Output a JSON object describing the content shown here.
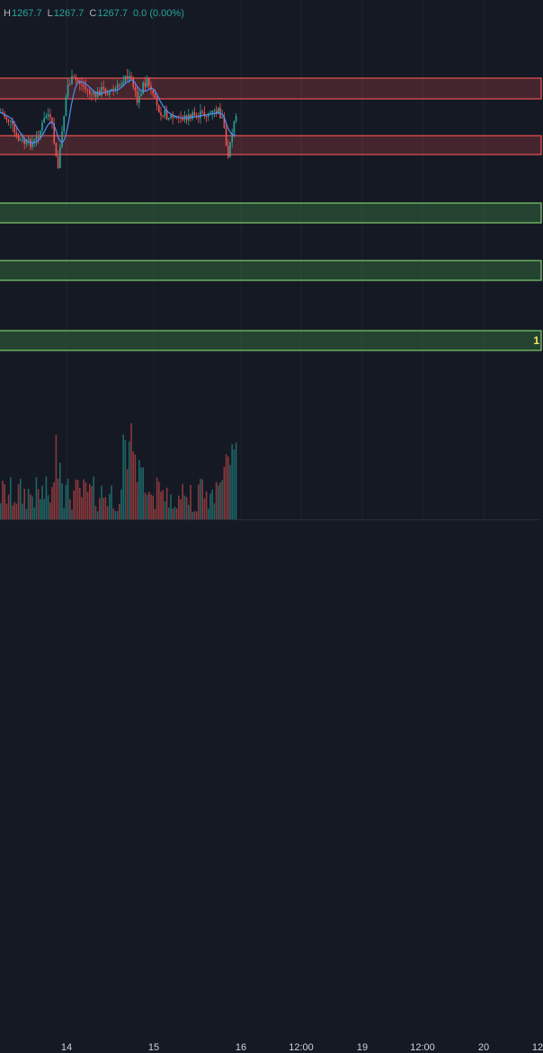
{
  "legend": {
    "h_label": "H",
    "h_value": "1267.7",
    "l_label": "L",
    "l_value": "1267.7",
    "c_label": "C",
    "c_value": "1267.7",
    "change": "0.0 (0.00%)"
  },
  "yellow_tag": "1",
  "x_axis": [
    "14",
    "15",
    "16",
    "12:00",
    "19",
    "12:00",
    "20",
    "12"
  ],
  "colors": {
    "background": "#151924",
    "up": "#26a69a",
    "down": "#ef5350",
    "resistance_zone": "#ef5350",
    "support_zone": "#7fcf6a",
    "moving_average": "#4e8ef7",
    "label_highlight": "#f5e663"
  },
  "zones": [
    {
      "kind": "resistance"
    },
    {
      "kind": "resistance"
    },
    {
      "kind": "support"
    },
    {
      "kind": "support"
    },
    {
      "kind": "support"
    }
  ]
}
